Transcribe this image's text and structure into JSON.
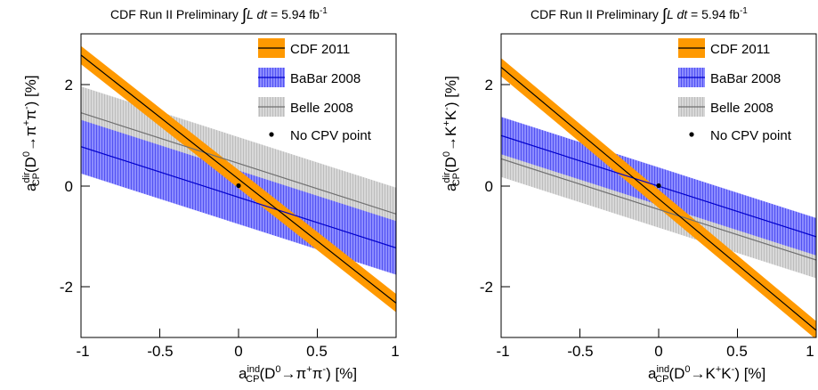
{
  "chart_data": [
    {
      "type": "line",
      "title": "CDF Run II Preliminary ∫L dt = 5.94 fb⁻¹",
      "xlabel": "a_CP^ind(D⁰→π⁺π⁻) [%]",
      "ylabel": "a_CP^dir(D⁰→π⁺π⁻) [%]",
      "xlim": [
        -1,
        1
      ],
      "ylim": [
        -3,
        3
      ],
      "x_ticks": [
        -1,
        -0.5,
        0,
        0.5,
        1
      ],
      "x_tick_labels": [
        "-1",
        "-0.5",
        "0",
        "0.5",
        "1"
      ],
      "y_ticks": [
        -2,
        0,
        2
      ],
      "y_tick_labels": [
        "-2",
        "0",
        "2"
      ],
      "legend_position": "top-right",
      "series": [
        {
          "name": "CDF 2011",
          "x": [
            -1,
            1
          ],
          "y": [
            2.58,
            -2.32
          ],
          "band_halfwidth": 0.18,
          "color": "#ff9900",
          "line_color": "#000000"
        },
        {
          "name": "BaBar 2008",
          "x": [
            -1,
            1
          ],
          "y": [
            0.77,
            -1.23
          ],
          "band_halfwidth": 0.53,
          "color": "#6666ff",
          "line_color": "#0000cc"
        },
        {
          "name": "Belle 2008",
          "x": [
            -1,
            1
          ],
          "y": [
            1.44,
            -0.56
          ],
          "band_halfwidth": 0.52,
          "color": "#c8c8c8",
          "line_color": "#707070"
        }
      ],
      "points": [
        {
          "name": "No CPV point",
          "x": 0,
          "y": 0
        }
      ]
    },
    {
      "type": "line",
      "title": "CDF Run II Preliminary ∫L dt = 5.94 fb⁻¹",
      "xlabel": "a_CP^ind(D⁰→K⁺K⁻) [%]",
      "ylabel": "a_CP^dir(D⁰→K⁺K⁻) [%]",
      "xlim": [
        -1,
        1
      ],
      "ylim": [
        -3,
        3
      ],
      "x_ticks": [
        -1,
        -0.5,
        0,
        0.5,
        1
      ],
      "x_tick_labels": [
        "-1",
        "-0.5",
        "0",
        "0.5",
        "1"
      ],
      "y_ticks": [
        -2,
        0,
        2
      ],
      "y_tick_labels": [
        "-2",
        "0",
        "2"
      ],
      "legend_position": "top-right",
      "series": [
        {
          "name": "CDF 2011",
          "x": [
            -1,
            1
          ],
          "y": [
            2.34,
            -2.86
          ],
          "band_halfwidth": 0.18,
          "color": "#ff9900",
          "line_color": "#000000"
        },
        {
          "name": "BaBar 2008",
          "x": [
            -1,
            1
          ],
          "y": [
            0.99,
            -1.01
          ],
          "band_halfwidth": 0.37,
          "color": "#6666ff",
          "line_color": "#0000cc"
        },
        {
          "name": "Belle 2008",
          "x": [
            -1,
            1
          ],
          "y": [
            0.53,
            -1.47
          ],
          "band_halfwidth": 0.36,
          "color": "#c8c8c8",
          "line_color": "#707070"
        }
      ],
      "points": [
        {
          "name": "No CPV point",
          "x": 0,
          "y": 0
        }
      ]
    }
  ],
  "panels": [
    {
      "title": {
        "prefix": "CDF Run II Preliminary ",
        "integral": "∫",
        "L": "L",
        "dt": " dt",
        "eq": " = 5.94 fb",
        "exp": "-1"
      },
      "ylabel": {
        "a": "a",
        "sup": "dir",
        "sub": "CP",
        "open": "(D",
        "zero": "0",
        "arrow": "→",
        "p1": "π",
        "plus": "+",
        "p2": "π",
        "minus": "-",
        "close": ") [%]"
      },
      "xlabel": {
        "a": "a",
        "sup": "ind",
        "sub": "CP",
        "open": "(D",
        "zero": "0",
        "arrow": "→",
        "p1": "π",
        "plus": "+",
        "p2": "π",
        "minus": "-",
        "close": ") [%]"
      }
    },
    {
      "title": {
        "prefix": "CDF Run II Preliminary ",
        "integral": "∫",
        "L": "L",
        "dt": " dt",
        "eq": " = 5.94 fb",
        "exp": "-1"
      },
      "ylabel": {
        "a": "a",
        "sup": "dir",
        "sub": "CP",
        "open": "(D",
        "zero": "0",
        "arrow": "→",
        "p1": "K",
        "plus": "+",
        "p2": "K",
        "minus": "-",
        "close": ") [%]"
      },
      "xlabel": {
        "a": "a",
        "sup": "ind",
        "sub": "CP",
        "open": "(D",
        "zero": "0",
        "arrow": "→",
        "p1": "K",
        "plus": "+",
        "p2": "K",
        "minus": "-",
        "close": ") [%]"
      }
    }
  ]
}
